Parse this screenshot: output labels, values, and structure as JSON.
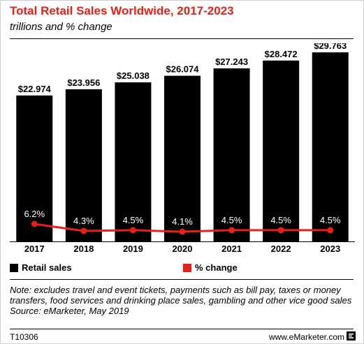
{
  "header": {
    "title": "Total Retail Sales Worldwide, 2017-2023",
    "subtitle": "trillions and % change"
  },
  "legend": {
    "retail_sales_label": "Retail sales",
    "pct_change_label": "% change"
  },
  "colors": {
    "title": "#e32119",
    "bar": "#000000",
    "line": "#e32119"
  },
  "note": {
    "text": "Note: excludes travel and event tickets, payments such as bill pay, taxes or money transfers, food services and drinking place sales, gambling and other vice good sales",
    "source": "Source: eMarketer, May 2019"
  },
  "footer": {
    "chart_id": "T10306",
    "brand": "www.eMarketer.com"
  },
  "chart_data": {
    "type": "bar",
    "categories": [
      "2017",
      "2018",
      "2019",
      "2020",
      "2021",
      "2022",
      "2023"
    ],
    "series": [
      {
        "name": "Retail sales",
        "values": [
          22.974,
          23.956,
          25.038,
          26.074,
          27.243,
          28.472,
          29.763
        ],
        "labels": [
          "$22.974",
          "$23.956",
          "$25.038",
          "$26.074",
          "$27.243",
          "$28.472",
          "$29.763"
        ]
      },
      {
        "name": "% change",
        "type": "line",
        "values": [
          6.2,
          4.3,
          4.5,
          4.1,
          4.5,
          4.5,
          4.5
        ],
        "labels": [
          "6.2%",
          "4.3%",
          "4.5%",
          "4.1%",
          "4.5%",
          "4.5%",
          "4.5%"
        ]
      }
    ],
    "title": "Total Retail Sales Worldwide, 2017-2023",
    "subtitle": "trillions and % change",
    "legend_position": "bottom"
  }
}
